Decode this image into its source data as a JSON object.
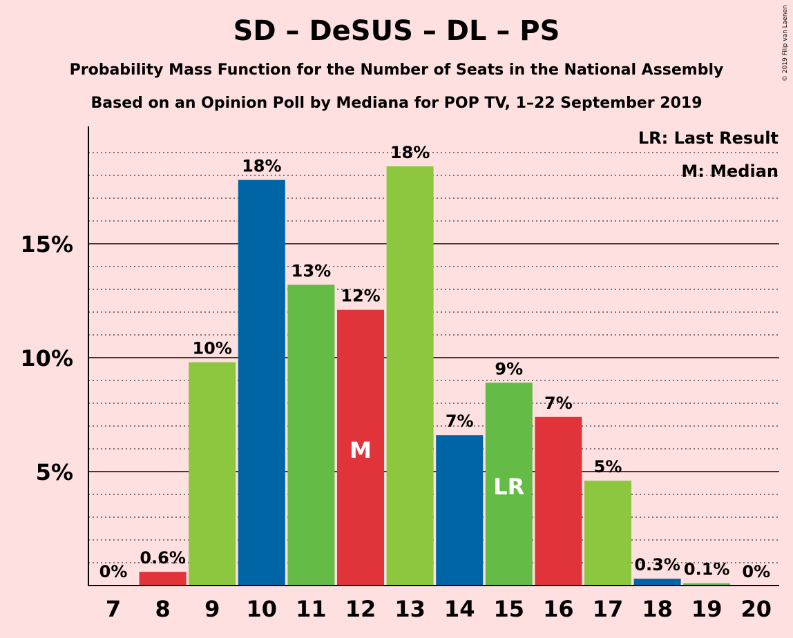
{
  "title": "SD – DeSUS – DL – PS",
  "subtitle1": "Probability Mass Function for the Number of Seats in the National Assembly",
  "subtitle2": "Based on an Opinion Poll by Mediana for POP TV, 1–22 September 2019",
  "copyright": "© 2019 Filip van Laenen",
  "legend": {
    "last_result": "LR: Last Result",
    "median": "M: Median"
  },
  "colors": {
    "background": "#FFE0E0",
    "red": "#E0333A",
    "green_light": "#8DC63F",
    "blue": "#0065A4",
    "green": "#64BB46"
  },
  "chart_data": {
    "type": "bar",
    "categories": [
      "7",
      "8",
      "9",
      "10",
      "11",
      "12",
      "13",
      "14",
      "15",
      "16",
      "17",
      "18",
      "19",
      "20"
    ],
    "values": [
      0,
      0.6,
      9.8,
      17.8,
      13.2,
      12.1,
      18.4,
      6.6,
      8.9,
      7.4,
      4.6,
      0.3,
      0.1,
      0
    ],
    "bar_labels": [
      "0%",
      "0.6%",
      "10%",
      "18%",
      "13%",
      "12%",
      "18%",
      "7%",
      "9%",
      "7%",
      "5%",
      "0.3%",
      "0.1%",
      "0%"
    ],
    "bar_colors": [
      "#E0333A",
      "#E0333A",
      "#8DC63F",
      "#0065A4",
      "#64BB46",
      "#E0333A",
      "#8DC63F",
      "#0065A4",
      "#64BB46",
      "#E0333A",
      "#8DC63F",
      "#0065A4",
      "#64BB46",
      "#E0333A"
    ],
    "markers": {
      "12": "M",
      "15": "LR"
    },
    "yticks": [
      5,
      10,
      15
    ],
    "ytick_labels": [
      "5%",
      "10%",
      "15%"
    ],
    "ylim": [
      0,
      20
    ],
    "grid": true,
    "legend_position": "top-right"
  }
}
